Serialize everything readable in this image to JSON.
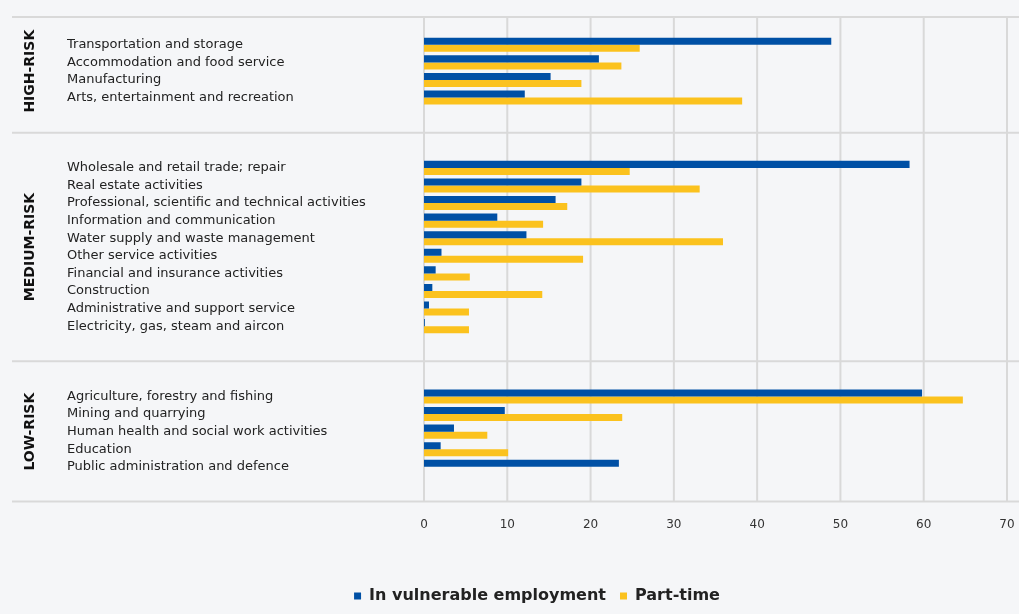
{
  "chart_data": {
    "type": "bar",
    "orientation": "horizontal",
    "annotations": [
      "HIGH-RISK",
      "MEDIUM-RISK",
      "LOW-RISK"
    ],
    "categories": [
      "Transportation and storage",
      "Accommodation and food service",
      "Manufacturing",
      "Arts, entertainment and recreation",
      null,
      null,
      null,
      "Wholesale and retail trade; repair",
      "Real estate activities",
      "Professional, scientific and technical activities",
      "Information and communication",
      "Water supply and waste management",
      "Other service activities",
      "Financial and insurance activities",
      "Construction",
      "Administrative and support service",
      "Electricity, gas, steam and aircon",
      null,
      null,
      null,
      "Agriculture, forestry and fishing",
      "Mining and quarrying",
      "Human health and social work activities",
      "Education",
      "Public administration and defence"
    ],
    "series": [
      {
        "name": "In vulnerable employment",
        "color": "#0050a5",
        "values": [
          48.9,
          21.0,
          15.2,
          12.1,
          null,
          null,
          null,
          58.3,
          18.9,
          15.8,
          8.8,
          12.3,
          2.1,
          1.4,
          1.0,
          0.6,
          0.1,
          null,
          null,
          null,
          59.8,
          9.7,
          3.6,
          2.0,
          23.4
        ]
      },
      {
        "name": "Part-time",
        "color": "#fbc21e",
        "values": [
          25.9,
          23.7,
          18.9,
          38.2,
          null,
          null,
          null,
          24.7,
          33.1,
          17.2,
          14.3,
          35.9,
          19.1,
          5.5,
          14.2,
          5.4,
          5.4,
          null,
          null,
          null,
          64.7,
          23.8,
          7.6,
          10.1,
          null
        ]
      }
    ],
    "xlim": [
      0,
      70
    ],
    "xticks": [
      0,
      10,
      20,
      30,
      40,
      50,
      60,
      70
    ],
    "grid": "x",
    "legend": "bottom"
  }
}
